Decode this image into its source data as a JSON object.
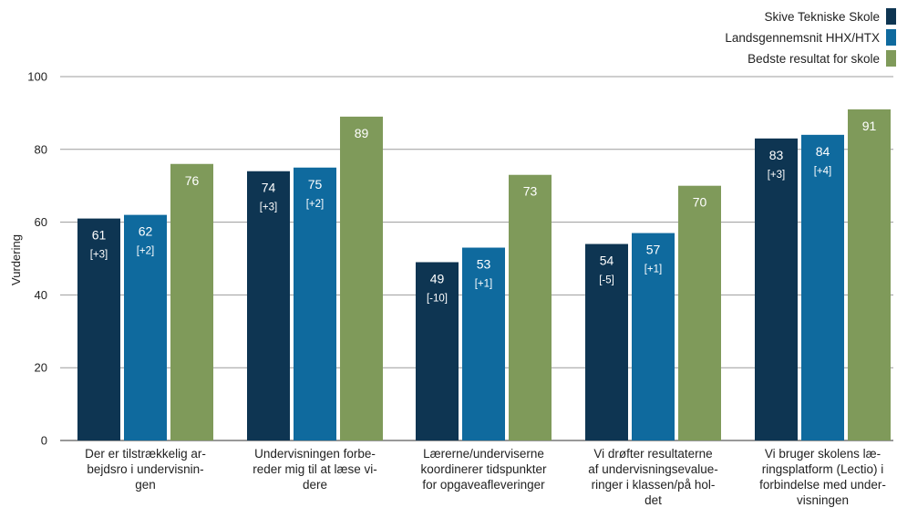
{
  "chart_data": {
    "type": "bar",
    "ylabel": "Vurdering",
    "ylim": [
      0,
      100
    ],
    "yticks": [
      0,
      20,
      40,
      60,
      80,
      100
    ],
    "grid": true,
    "legend_position": "top-right",
    "categories": [
      [
        "Der er tilstrækkelig ar-",
        "bejdsro i undervisnin-",
        "gen"
      ],
      [
        "Undervisningen forbe-",
        "reder mig til at læse vi-",
        "dere"
      ],
      [
        "Lærerne/underviserne",
        "koordinerer tidspunkter",
        "for opgaveafleveringer"
      ],
      [
        "Vi drøfter resultaterne",
        "af undervisningsevalue-",
        "ringer i klassen/på hol-",
        "det"
      ],
      [
        "Vi bruger skolens læ-",
        "ringsplatform (Lectio) i",
        "forbindelse med under-",
        "visningen"
      ]
    ],
    "series": [
      {
        "name": "Skive Tekniske Skole",
        "color": "#0e3552",
        "values": [
          61,
          74,
          49,
          54,
          83
        ],
        "labels": [
          "61",
          "74",
          "49",
          "54",
          "83"
        ],
        "deltas": [
          "[+3]",
          "[+3]",
          "[-10]",
          "[-5]",
          "[+3]"
        ]
      },
      {
        "name": "Landsgennemsnit HHX/HTX",
        "color": "#0f6a9e",
        "values": [
          62,
          75,
          53,
          57,
          84
        ],
        "labels": [
          "62",
          "75",
          "53",
          "57",
          "84"
        ],
        "deltas": [
          "[+2]",
          "[+2]",
          "[+1]",
          "[+1]",
          "[+4]"
        ]
      },
      {
        "name": "Bedste resultat for skole",
        "color": "#7f9a5a",
        "values": [
          76,
          89,
          73,
          70,
          91
        ],
        "labels": [
          "76",
          "89",
          "73",
          "70",
          "91"
        ],
        "deltas": [
          "",
          "",
          "",
          "",
          ""
        ]
      }
    ]
  }
}
